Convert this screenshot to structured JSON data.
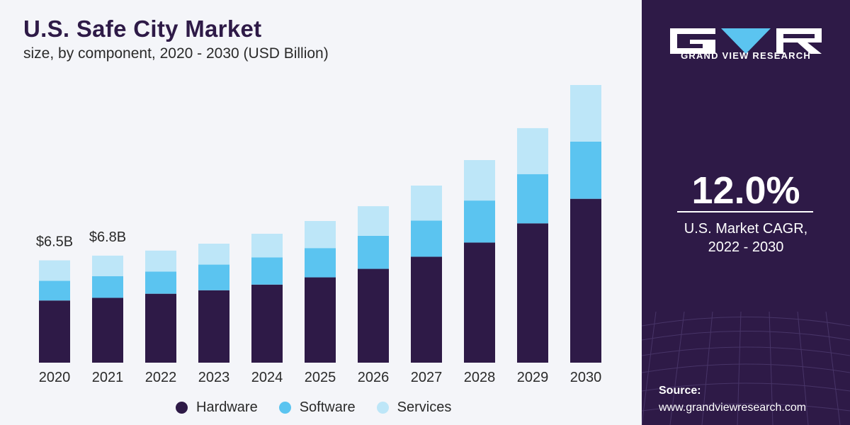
{
  "header": {
    "title": "U.S. Safe City Market",
    "subtitle": "size, by component, 2020 - 2030 (USD Billion)"
  },
  "legend": [
    {
      "label": "Hardware",
      "color": "#2e1a47"
    },
    {
      "label": "Software",
      "color": "#5bc4f0"
    },
    {
      "label": "Services",
      "color": "#bde6f8"
    }
  ],
  "chart_data": {
    "type": "bar",
    "stacked": true,
    "title": "U.S. Safe City Market",
    "subtitle": "size, by component, 2020 - 2030 (USD Billion)",
    "categories": [
      "2020",
      "2021",
      "2022",
      "2023",
      "2024",
      "2025",
      "2026",
      "2027",
      "2028",
      "2029",
      "2030"
    ],
    "series": [
      {
        "name": "Hardware",
        "color": "#2e1a47",
        "values": [
          3.95,
          4.12,
          4.38,
          4.6,
          4.96,
          5.42,
          5.96,
          6.73,
          7.63,
          8.85,
          10.41
        ]
      },
      {
        "name": "Software",
        "color": "#5bc4f0",
        "values": [
          1.25,
          1.37,
          1.41,
          1.63,
          1.73,
          1.86,
          2.1,
          2.3,
          2.67,
          3.13,
          3.63
        ]
      },
      {
        "name": "Services",
        "color": "#bde6f8",
        "values": [
          1.3,
          1.31,
          1.33,
          1.33,
          1.5,
          1.72,
          1.88,
          2.22,
          2.57,
          2.92,
          3.6
        ]
      }
    ],
    "data_labels": [
      {
        "category": "2020",
        "text": "$6.5B"
      },
      {
        "category": "2021",
        "text": "$6.8B"
      }
    ],
    "ylim": [
      0,
      18
    ],
    "grid": false,
    "legend_position": "bottom"
  },
  "sidebar": {
    "brand": "GRAND VIEW RESEARCH",
    "cagr_value": "12.0%",
    "cagr_label_line1": "U.S. Market CAGR,",
    "cagr_label_line2": "2022 - 2030",
    "source_title": "Source:",
    "source_url": "www.grandviewresearch.com"
  }
}
